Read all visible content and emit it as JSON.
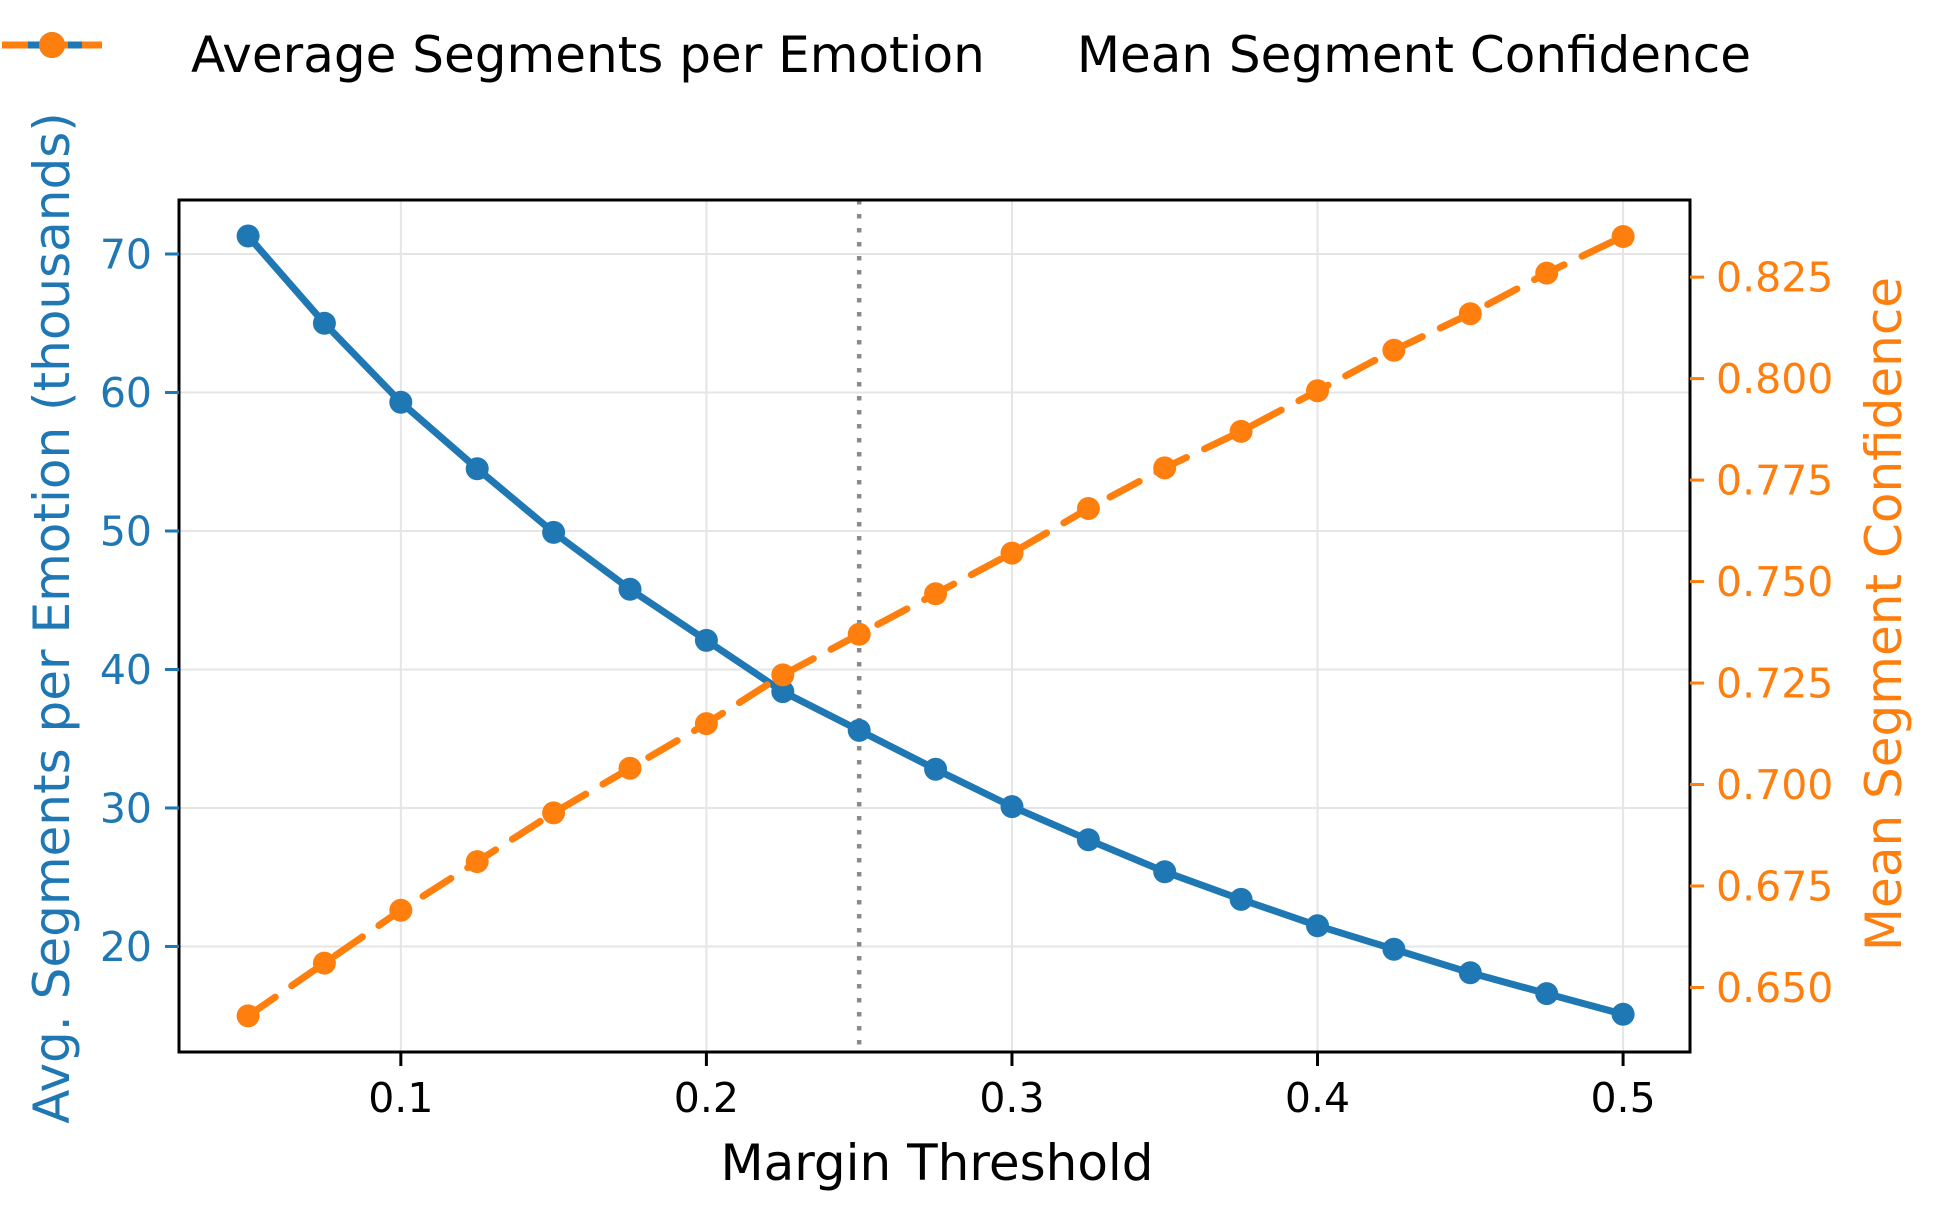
{
  "chart_data": {
    "type": "line",
    "title": "",
    "xlabel": "Margin Threshold",
    "ylabel_left": "Avg. Segments per Emotion (thousands)",
    "ylabel_right": "Mean Segment Confidence",
    "x": [
      0.05,
      0.075,
      0.1,
      0.125,
      0.15,
      0.175,
      0.2,
      0.225,
      0.25,
      0.275,
      0.3,
      0.325,
      0.35,
      0.375,
      0.4,
      0.425,
      0.45,
      0.475,
      0.5
    ],
    "series": [
      {
        "name": "Average Segments per Emotion",
        "axis": "left",
        "color": "#1f77b4",
        "style": "solid",
        "marker": "circle",
        "values": [
          71.3,
          65.0,
          59.3,
          54.5,
          49.9,
          45.8,
          42.1,
          38.4,
          35.6,
          32.8,
          30.1,
          27.7,
          25.4,
          23.4,
          21.5,
          19.8,
          18.1,
          16.6,
          15.1
        ]
      },
      {
        "name": "Mean Segment Confidence",
        "axis": "right",
        "color": "#ff7f0e",
        "style": "dashed",
        "marker": "circle",
        "values": [
          0.643,
          0.656,
          0.669,
          0.681,
          0.693,
          0.704,
          0.715,
          0.727,
          0.737,
          0.747,
          0.757,
          0.768,
          0.778,
          0.787,
          0.797,
          0.807,
          0.816,
          0.826,
          0.835
        ]
      }
    ],
    "x_ticks": [
      0.1,
      0.2,
      0.3,
      0.4,
      0.5
    ],
    "x_tick_labels": [
      "0.1",
      "0.2",
      "0.3",
      "0.4",
      "0.5"
    ],
    "y_ticks_left": [
      20,
      30,
      40,
      50,
      60,
      70
    ],
    "y_tick_labels_left": [
      "20",
      "30",
      "40",
      "50",
      "60",
      "70"
    ],
    "y_ticks_right": [
      0.65,
      0.675,
      0.7,
      0.725,
      0.75,
      0.775,
      0.8,
      0.825
    ],
    "y_tick_labels_right": [
      "0.650",
      "0.675",
      "0.700",
      "0.725",
      "0.750",
      "0.775",
      "0.800",
      "0.825"
    ],
    "xlim": [
      0.0274,
      0.5219
    ],
    "ylim_left": [
      12.38,
      73.9
    ],
    "ylim_right": [
      0.6341,
      0.844
    ],
    "vline": {
      "x": 0.25,
      "style": "dotted",
      "color": "#8a8a8a"
    },
    "grid": true,
    "legend_position": "top-center",
    "colors": {
      "left_axis": "#1f77b4",
      "right_axis": "#ff7f0e",
      "grid": "#e5e5e5",
      "frame": "#000000",
      "background": "#ffffff",
      "text": "#000000"
    }
  }
}
